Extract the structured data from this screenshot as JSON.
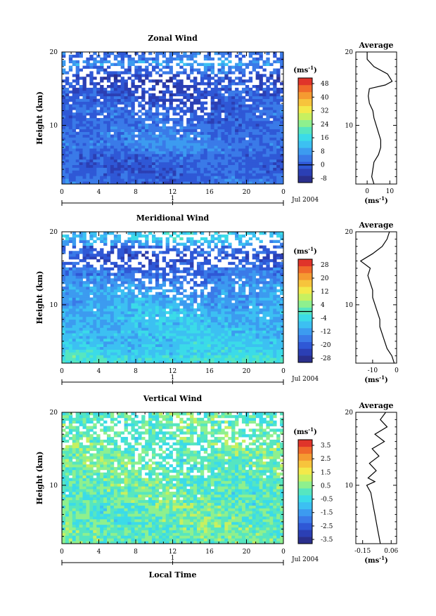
{
  "colors": {
    "ramp": [
      "#2a2f8c",
      "#2b3fb4",
      "#2f58d6",
      "#3a7ae8",
      "#3c9bf0",
      "#3cc0f2",
      "#3bdbe8",
      "#56e6c0",
      "#8ef08e",
      "#c7f060",
      "#f3e94a",
      "#f7c43c",
      "#f59a31",
      "#f06a2a",
      "#e0342a"
    ],
    "line": "#000000",
    "gap": "#ffffff"
  },
  "chart_data": [
    {
      "type": "heatmap",
      "title": "Zonal Wind",
      "ylabel": "Height (km)",
      "ylim": [
        2,
        20
      ],
      "yticks": [
        "10",
        "20"
      ],
      "xlim": [
        0,
        24
      ],
      "xticks": [
        "0",
        "4",
        "8",
        "12",
        "16",
        "20",
        "0"
      ],
      "date_label": "Jul 2004",
      "day_label": "1",
      "colorbar": {
        "unit": "(ms",
        "unit_sup": "-1",
        "unit_close": ")",
        "labels": [
          "48",
          "40",
          "32",
          "24",
          "16",
          "8",
          "0",
          "-8"
        ],
        "zero_index": 6
      },
      "profile_mean_by_km": [
        3,
        2,
        2,
        3,
        5,
        6,
        5,
        4,
        3,
        3,
        2,
        1,
        0,
        0,
        -1,
        4,
        9,
        5,
        2
      ],
      "average": {
        "title": "Average",
        "yticks": [
          "10",
          "20"
        ],
        "xticks": [
          "0",
          "10"
        ],
        "xlim": [
          -5,
          13
        ],
        "xlabel": "(ms",
        "xlabel_sup": "-1",
        "xlabel_close": ")",
        "heights_km": [
          2,
          3,
          4,
          5,
          6,
          7,
          8,
          9,
          10,
          11,
          12,
          13,
          14,
          15,
          15.5,
          16,
          17,
          18,
          19,
          20
        ],
        "values": [
          3,
          2,
          2.5,
          3,
          5,
          6,
          6,
          5,
          4,
          3,
          2.5,
          1,
          0.5,
          1,
          8,
          11,
          9,
          3,
          0,
          0
        ]
      }
    },
    {
      "type": "heatmap",
      "title": "Meridional Wind",
      "ylabel": "Height (km)",
      "ylim": [
        2,
        20
      ],
      "yticks": [
        "10",
        "20"
      ],
      "xlim": [
        0,
        24
      ],
      "xticks": [
        "0",
        "4",
        "8",
        "12",
        "16",
        "20",
        "0"
      ],
      "date_label": "Jul 2004",
      "day_label": "1",
      "colorbar": {
        "unit": "(ms",
        "unit_sup": "-1",
        "unit_close": ")",
        "labels": [
          "28",
          "20",
          "12",
          "4",
          "-4",
          "-12",
          "-20",
          "-28"
        ],
        "zero_index": 3.5
      },
      "profile_mean_by_km": [
        -3,
        -5,
        -6,
        -7,
        -7,
        -8,
        -8,
        -9,
        -10,
        -11,
        -12,
        -14,
        -16,
        -18,
        -20,
        -17,
        -10,
        -6,
        -4
      ],
      "average": {
        "title": "Average",
        "yticks": [
          "10",
          "20"
        ],
        "xticks": [
          "-10",
          "0"
        ],
        "xlim": [
          -17,
          0
        ],
        "xlabel": "(ms",
        "xlabel_sup": "-1",
        "xlabel_close": ")",
        "heights_km": [
          2,
          3,
          4,
          5,
          6,
          7,
          8,
          9,
          10,
          11,
          12,
          13,
          14,
          15,
          16,
          17,
          18,
          19,
          20
        ],
        "values": [
          -1,
          -2,
          -4,
          -5,
          -6,
          -7,
          -7,
          -8,
          -9,
          -10,
          -10,
          -11,
          -12,
          -11,
          -15,
          -10,
          -6,
          -4,
          -3
        ]
      }
    },
    {
      "type": "heatmap",
      "title": "Vertical Wind",
      "ylabel": "Height (km)",
      "ylim": [
        2,
        20
      ],
      "yticks": [
        "10",
        "20"
      ],
      "xlim": [
        0,
        24
      ],
      "xticks": [
        "0",
        "4",
        "8",
        "12",
        "16",
        "20",
        "0"
      ],
      "xlabel": "Local Time",
      "date_label": "Jul 2004",
      "day_label": "1",
      "colorbar": {
        "unit": "(ms",
        "unit_sup": "-1",
        "unit_close": ")",
        "labels": [
          "3.5",
          "2.5",
          "1.5",
          "0.5",
          "-0.5",
          "-1.5",
          "-2.5",
          "-3.5"
        ],
        "zero_index": null
      },
      "profile_mean_by_km": [
        0.1,
        0.1,
        0.1,
        0.1,
        0.1,
        0.1,
        0.1,
        0.1,
        0.1,
        0.1,
        0.1,
        0.1,
        0.1,
        0.1,
        0.1,
        0.1,
        0.1,
        0.1,
        0.1
      ],
      "average": {
        "title": "Average",
        "yticks": [
          "10",
          "20"
        ],
        "xticks": [
          "-0.15",
          "0.06"
        ],
        "xlim": [
          -0.2,
          0.1
        ],
        "xlabel": "(ms",
        "xlabel_sup": "-1",
        "xlabel_close": ")",
        "heights_km": [
          2,
          3,
          4,
          5,
          6,
          7,
          8,
          9,
          10,
          10.5,
          11,
          12,
          13,
          14,
          15,
          16,
          17,
          18,
          19,
          20
        ],
        "values": [
          -0.02,
          -0.03,
          -0.04,
          -0.05,
          -0.06,
          -0.07,
          -0.08,
          -0.09,
          -0.12,
          -0.06,
          -0.11,
          -0.05,
          -0.1,
          -0.03,
          -0.08,
          0.01,
          -0.06,
          0.03,
          -0.02,
          0.02
        ]
      }
    }
  ]
}
